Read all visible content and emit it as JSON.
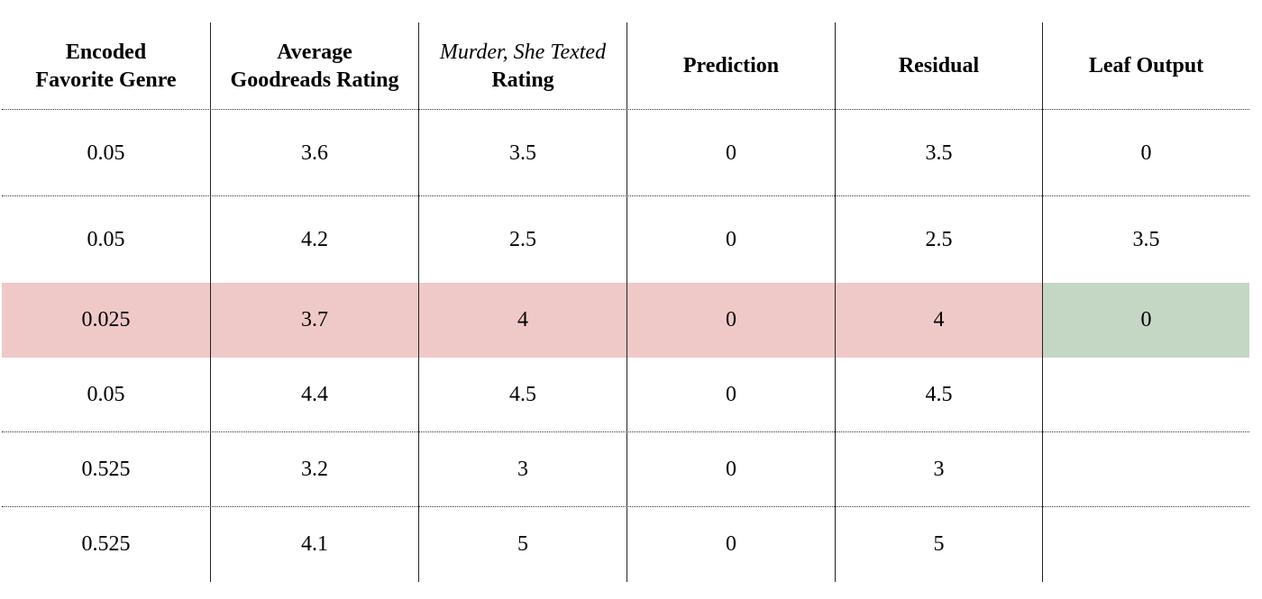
{
  "table": {
    "headers": [
      [
        "Encoded",
        "Favorite Genre"
      ],
      [
        "Average",
        "Goodreads Rating"
      ],
      [
        "Murder, She Texted",
        "Rating"
      ],
      [
        "Prediction"
      ],
      [
        "Residual"
      ],
      [
        "Leaf Output"
      ]
    ],
    "rows": [
      [
        "0.05",
        "3.6",
        "3.5",
        "0",
        "3.5",
        "0"
      ],
      [
        "0.05",
        "4.2",
        "2.5",
        "0",
        "2.5",
        "3.5"
      ],
      [
        "0.025",
        "3.7",
        "4",
        "0",
        "4",
        "0"
      ],
      [
        "0.05",
        "4.4",
        "4.5",
        "0",
        "4.5",
        ""
      ],
      [
        "0.525",
        "3.2",
        "3",
        "0",
        "3",
        ""
      ],
      [
        "0.525",
        "4.1",
        "5",
        "0",
        "5",
        ""
      ]
    ],
    "highlight": {
      "row_index": 2,
      "row_color": "#efc9c7",
      "leaf_output_color": "#c4d6c4"
    }
  }
}
